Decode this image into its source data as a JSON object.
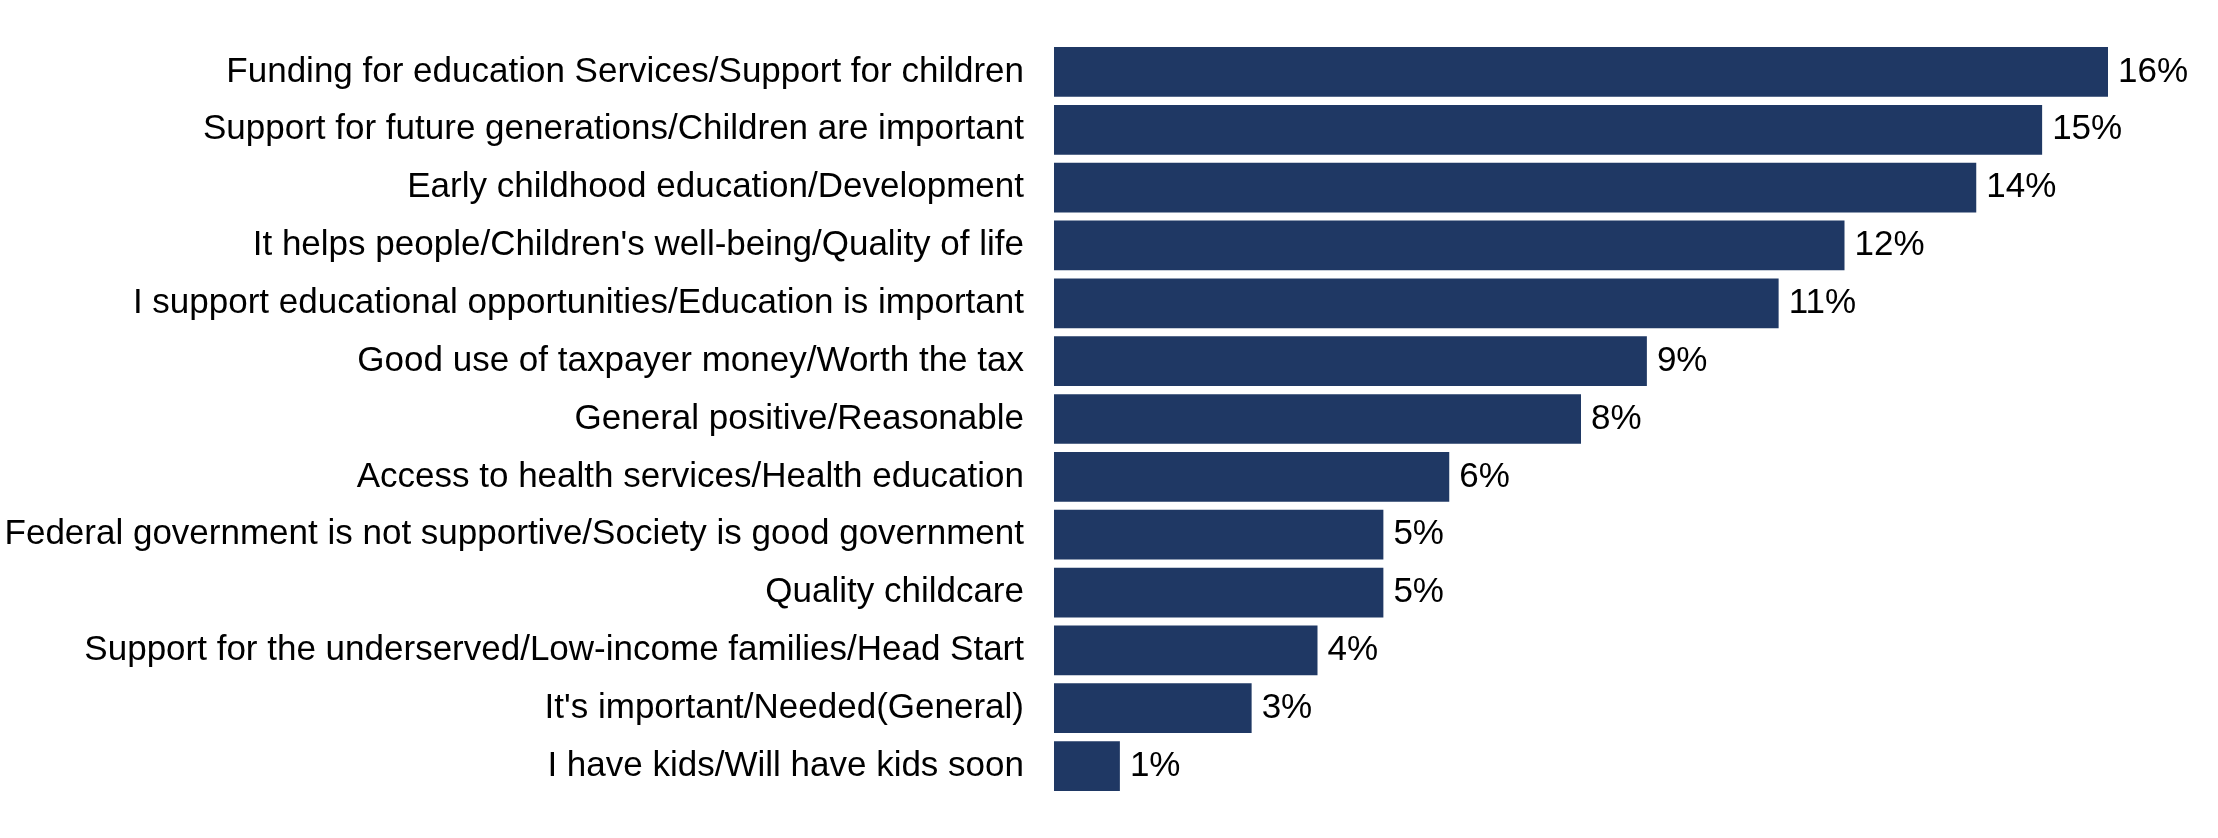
{
  "chart_data": {
    "type": "bar",
    "orientation": "horizontal",
    "tick_labels": "y",
    "categories": [
      "Funding for education Services/Support for children",
      "Support for future generations/Children are important",
      "Early childhood education/Development",
      "It helps people/Children's well-being/Quality of life",
      "I support educational opportunities/Education is important",
      "Good use of taxpayer money/Worth the tax",
      "General positive/Reasonable",
      "Access to health services/Health education",
      "Federal government is not supportive/Society is good government",
      "Quality childcare",
      "Support for the underserved/Low-income families/Head Start",
      "It's important/Needed(General)",
      "I have kids/Will have kids soon"
    ],
    "values": [
      16,
      15,
      14,
      12,
      11,
      9,
      8,
      6,
      5,
      5,
      4,
      3,
      1
    ],
    "value_labels": [
      "16%",
      "15%",
      "14%",
      "12%",
      "11%",
      "9%",
      "8%",
      "6%",
      "5%",
      "5%",
      "4%",
      "3%",
      "1%"
    ],
    "color": "#1f3864"
  }
}
